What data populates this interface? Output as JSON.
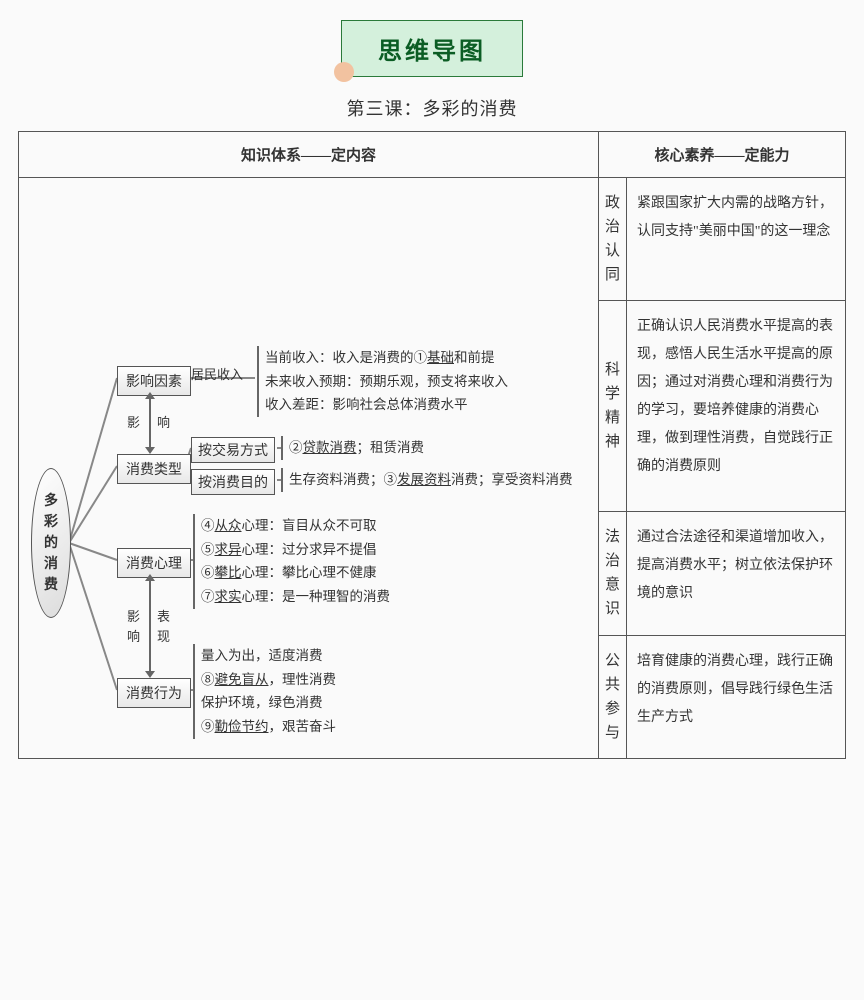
{
  "banner": {
    "text": "思维导图",
    "bg": "#d4f0dc",
    "border": "#2a7a3a",
    "text_color": "#0b5d24",
    "dot_color": "#f2c2a0"
  },
  "subtitle": "第三课：多彩的消费",
  "table_headers": {
    "left": "知识体系——定内容",
    "right": "核心素养——定能力"
  },
  "mindmap": {
    "root": "多\n彩\n的\n消\n费",
    "nodes": {
      "n1": "影响因素",
      "n2": "消费类型",
      "n3": "消费心理",
      "n4": "消费行为"
    },
    "sub_labels": {
      "income": "居民收入",
      "trade": "按交易方式",
      "purpose": "按消费目的"
    },
    "inter_labels": {
      "l12_a": "影",
      "l12_b": "响",
      "l34_a": "影",
      "l34_b": "响",
      "l34_c": "表",
      "l34_d": "现"
    },
    "leafs": {
      "income": [
        "当前收入：收入是消费的①<span class='und'>基础</span>和前提",
        "未来收入预期：预期乐观，预支将来收入",
        "收入差距：影响社会总体消费水平"
      ],
      "trade": [
        "②<span class='und'>贷款消费</span>；租赁消费"
      ],
      "purpose": [
        "生存资料消费；③<span class='und'>发展资料</span>消费；享受资料消费"
      ],
      "psych": [
        "④<span class='und'>从众</span>心理：盲目从众不可取",
        "⑤<span class='und'>求异</span>心理：过分求异不提倡",
        "⑥<span class='und'>攀比</span>心理：攀比心理不健康",
        "⑦<span class='und'>求实</span>心理：是一种理智的消费"
      ],
      "behav": [
        "量入为出，适度消费",
        "⑧<span class='und'>避免盲从</span>，理性消费",
        "保护环境，绿色消费",
        "⑨<span class='und'>勤俭节约</span>，艰苦奋斗"
      ]
    },
    "connector_color": "#888",
    "connector_width": 2
  },
  "competencies": [
    {
      "label": "政\n治\n认\n同",
      "desc": "紧跟国家扩大内需的战略方针，认同支持\"美丽中国\"的这一理念"
    },
    {
      "label": "科\n学\n精\n神",
      "desc": "正确认识人民消费水平提高的表现，感悟人民生活水平提高的原因；通过对消费心理和消费行为的学习，要培养健康的消费心理，做到理性消费，自觉践行正确的消费原则"
    },
    {
      "label": "法\n治\n意\n识",
      "desc": "通过合法途径和渠道增加收入，提高消费水平；树立依法保护环境的意识"
    },
    {
      "label": "公\n共\n参\n与",
      "desc": "培育健康的消费心理，践行正确的消费原则，倡导践行绿色生活生产方式"
    }
  ],
  "colors": {
    "border": "#555",
    "bg": "#fafafa"
  }
}
